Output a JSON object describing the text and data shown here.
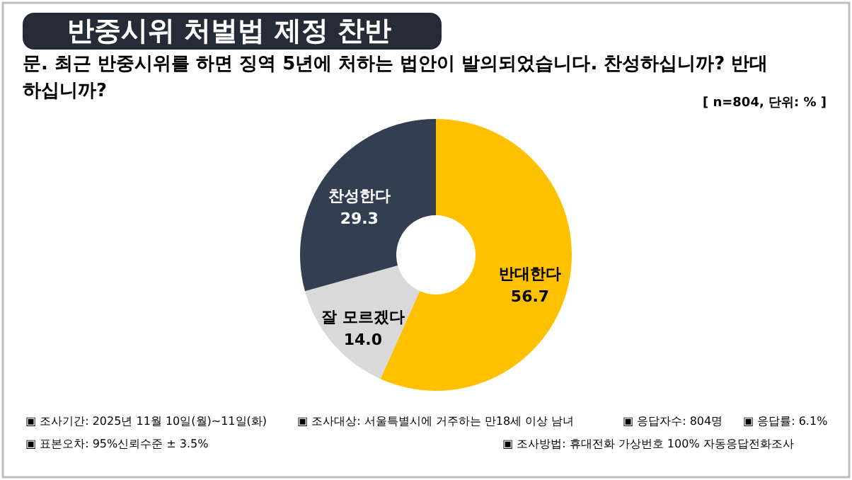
{
  "chart_data": {
    "type": "donut",
    "title": "반중시위 처벌법 제정 찬반",
    "subtitle": "문. 최근 반중시위를 하면 징역 5년에 처하는 법안이 발의되었습니다. 찬성하십니까? 반대\n하십니까?",
    "categories": [
      "반대한다",
      "잘 모르겠다",
      "찬성한다"
    ],
    "values": [
      56.7,
      14.0,
      29.3
    ],
    "colors": [
      "#ffc000",
      "#d9d9d9",
      "#333f50"
    ],
    "value_labels": [
      "56.7",
      "14.0",
      "29.3"
    ],
    "annotations": [
      "[ n=804, 단위: % ]",
      "▣ 조사기간: 2025년 11월 10일(월)~11일(화)",
      "▣ 조사대상: 서울특별시에 거주하는 만18세 이상 남녀",
      "▣ 응답자수: 804명",
      "▣ 응답률: 6.1%",
      "▣ 표본오차: 95%신뢰수준 ± 3.5%",
      "▣ 조사방법: 휴대전화 가상번호 100% 자동응답전화조사"
    ]
  }
}
